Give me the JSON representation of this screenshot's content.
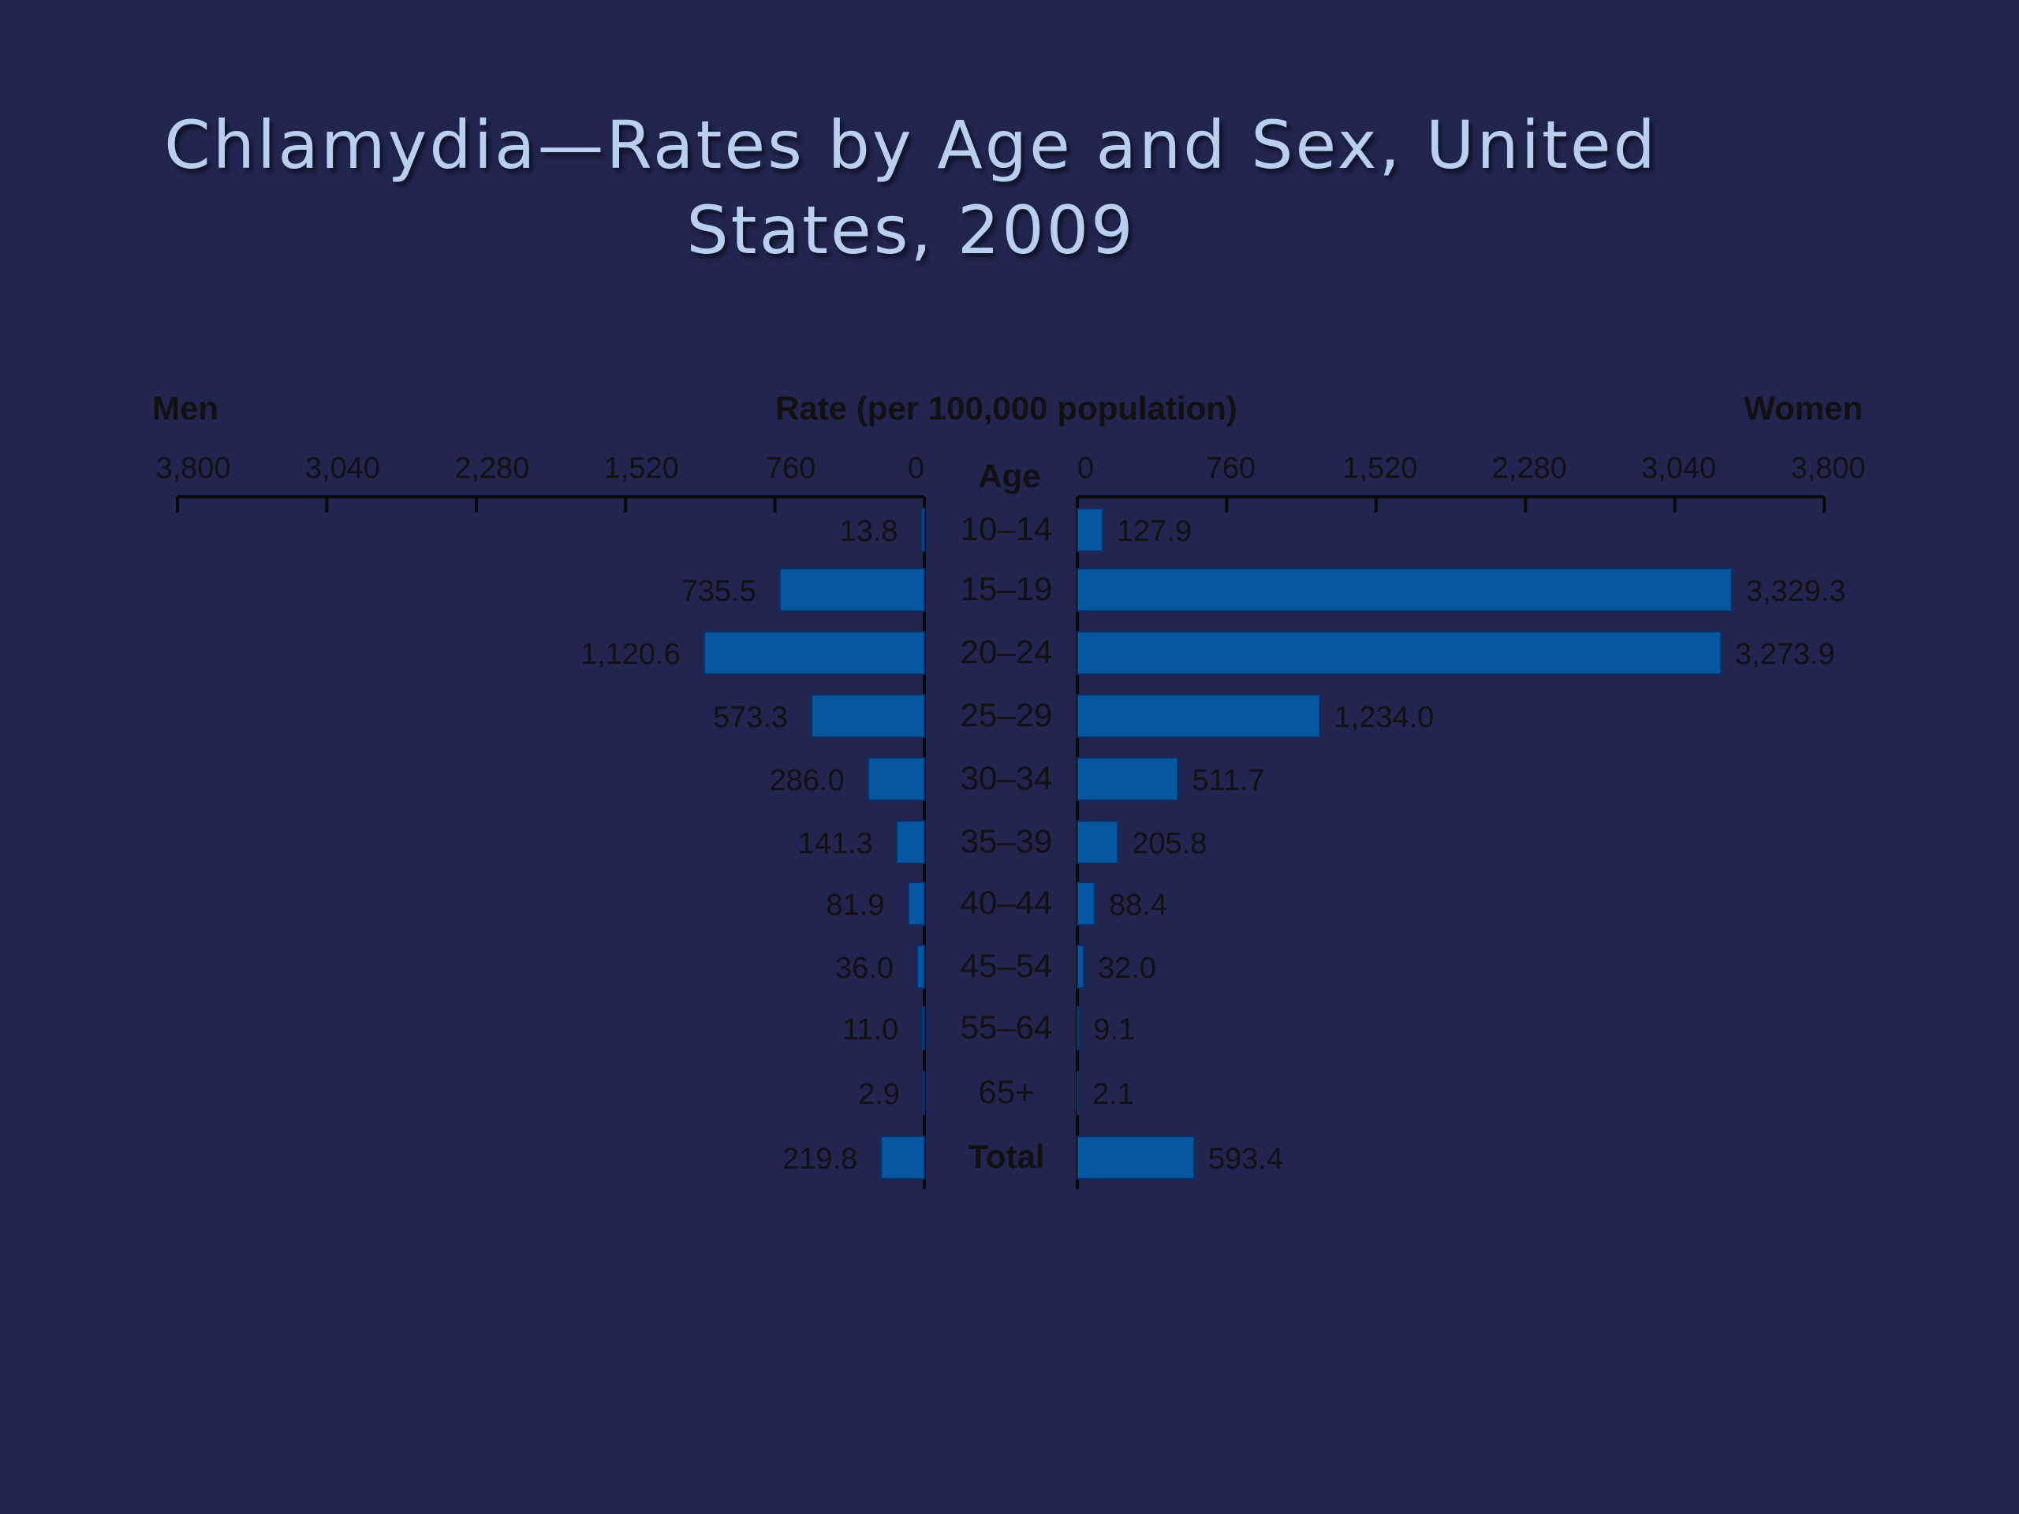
{
  "title": "Chlamydia—Rates by Age and Sex, United States, 2009",
  "chart_data": {
    "type": "bar",
    "layout": "back-to-back horizontal",
    "header_left": "Men",
    "header_center": "Rate (per 100,000 population)",
    "header_right": "Women",
    "category_axis_label": "Age",
    "xlim": [
      0,
      3800
    ],
    "ticks": [
      0,
      760,
      1520,
      2280,
      3040,
      3800
    ],
    "tick_labels": [
      "0",
      "760",
      "1,520",
      "2,280",
      "3,040",
      "3,800"
    ],
    "categories": [
      "10–14",
      "15–19",
      "20–24",
      "25–29",
      "30–34",
      "35–39",
      "40–44",
      "45–54",
      "55–64",
      "65+",
      "Total"
    ],
    "series": [
      {
        "name": "Men",
        "values": [
          13.8,
          735.5,
          1120.6,
          573.3,
          286.0,
          141.3,
          81.9,
          36.0,
          11.0,
          2.9,
          219.8
        ],
        "labels": [
          "13.8",
          "735.5",
          "1,120.6",
          "573.3",
          "286.0",
          "141.3",
          "81.9",
          "36.0",
          "11.0",
          "2.9",
          "219.8"
        ]
      },
      {
        "name": "Women",
        "values": [
          127.9,
          3329.3,
          3273.9,
          1234.0,
          511.7,
          205.8,
          88.4,
          32.0,
          9.1,
          2.1,
          593.4
        ],
        "labels": [
          "127.9",
          "3,329.3",
          "3,273.9",
          "1,234.0",
          "511.7",
          "205.8",
          "88.4",
          "32.0",
          "9.1",
          "2.1",
          "593.4"
        ]
      }
    ],
    "colors": {
      "bar": "#0558a0",
      "bar_edge": "#0b2f66",
      "text": "#111111",
      "axis": "#0a0a0a",
      "background": "#22254f",
      "title": "#b8cff0"
    }
  }
}
